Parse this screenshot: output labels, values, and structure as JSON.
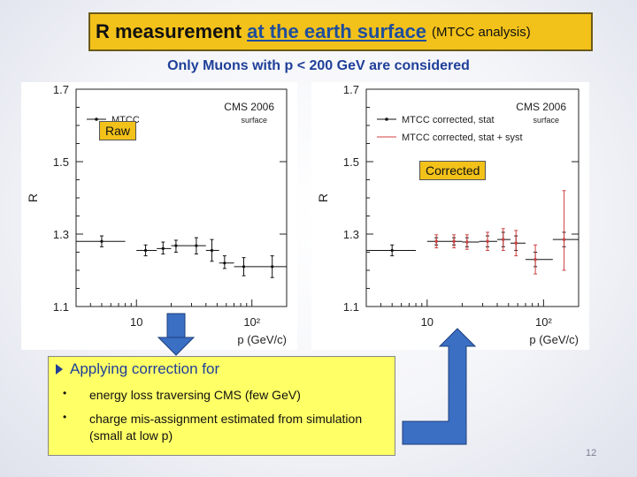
{
  "title": {
    "main": "R measurement",
    "highlight": "at the earth surface",
    "sub": "(MTCC analysis)"
  },
  "subtitle": "Only Muons with p < 200 GeV are considered",
  "chart_data": [
    {
      "type": "scatter",
      "panel": "left",
      "ylabel": "R",
      "xlabel": "p (GeV/c)",
      "xscale": "log",
      "xlim": [
        3,
        200
      ],
      "ylim": [
        1.1,
        1.7
      ],
      "yticks": [
        "1.1",
        "1.3",
        "1.5",
        "1.7"
      ],
      "xticks": [
        "10",
        "10²"
      ],
      "header_text": [
        "CMS 2006",
        "surface"
      ],
      "legend": [
        "MTCC"
      ],
      "series": [
        {
          "name": "MTCC",
          "color": "#111111",
          "points": [
            {
              "x": 5,
              "xlo": 3,
              "xhi": 8,
              "y": 1.28,
              "ylo": 1.265,
              "yhi": 1.295
            },
            {
              "x": 12,
              "xlo": 10,
              "xhi": 15,
              "y": 1.255,
              "ylo": 1.24,
              "yhi": 1.27
            },
            {
              "x": 17,
              "xlo": 15,
              "xhi": 20,
              "y": 1.26,
              "ylo": 1.245,
              "yhi": 1.278
            },
            {
              "x": 22,
              "xlo": 20,
              "xhi": 28,
              "y": 1.268,
              "ylo": 1.25,
              "yhi": 1.283
            },
            {
              "x": 33,
              "xlo": 28,
              "xhi": 40,
              "y": 1.268,
              "ylo": 1.245,
              "yhi": 1.29
            },
            {
              "x": 45,
              "xlo": 40,
              "xhi": 52,
              "y": 1.255,
              "ylo": 1.225,
              "yhi": 1.285
            },
            {
              "x": 58,
              "xlo": 52,
              "xhi": 70,
              "y": 1.22,
              "ylo": 1.205,
              "yhi": 1.24
            },
            {
              "x": 85,
              "xlo": 70,
              "xhi": 120,
              "y": 1.21,
              "ylo": 1.185,
              "yhi": 1.235
            },
            {
              "x": 150,
              "xlo": 120,
              "xhi": 200,
              "y": 1.21,
              "ylo": 1.18,
              "yhi": 1.24
            }
          ]
        }
      ]
    },
    {
      "type": "scatter",
      "panel": "right",
      "ylabel": "R",
      "xlabel": "p (GeV/c)",
      "xscale": "log",
      "xlim": [
        3,
        200
      ],
      "ylim": [
        1.1,
        1.7
      ],
      "yticks": [
        "1.1",
        "1.3",
        "1.5",
        "1.7"
      ],
      "xticks": [
        "10",
        "10²"
      ],
      "header_text": [
        "CMS 2006",
        "surface"
      ],
      "legend": [
        "MTCC corrected, stat",
        "MTCC corrected, stat + syst"
      ],
      "series": [
        {
          "name": "MTCC corrected, stat",
          "color": "#111111",
          "points": [
            {
              "x": 5,
              "xlo": 3,
              "xhi": 8,
              "y": 1.255,
              "ylo": 1.24,
              "yhi": 1.27
            },
            {
              "x": 12,
              "xlo": 10,
              "xhi": 15,
              "y": 1.28,
              "ylo": 1.27,
              "yhi": 1.29
            },
            {
              "x": 17,
              "xlo": 15,
              "xhi": 20,
              "y": 1.28,
              "ylo": 1.27,
              "yhi": 1.29
            },
            {
              "x": 22,
              "xlo": 20,
              "xhi": 28,
              "y": 1.278,
              "ylo": 1.265,
              "yhi": 1.29
            },
            {
              "x": 33,
              "xlo": 28,
              "xhi": 40,
              "y": 1.28,
              "ylo": 1.265,
              "yhi": 1.295
            },
            {
              "x": 45,
              "xlo": 40,
              "xhi": 52,
              "y": 1.285,
              "ylo": 1.265,
              "yhi": 1.305
            },
            {
              "x": 58,
              "xlo": 52,
              "xhi": 70,
              "y": 1.275,
              "ylo": 1.255,
              "yhi": 1.295
            },
            {
              "x": 85,
              "xlo": 70,
              "xhi": 120,
              "y": 1.23,
              "ylo": 1.21,
              "yhi": 1.25
            },
            {
              "x": 150,
              "xlo": 120,
              "xhi": 200,
              "y": 1.285,
              "ylo": 1.265,
              "yhi": 1.305
            }
          ]
        },
        {
          "name": "MTCC corrected, stat + syst",
          "color": "#d04040",
          "points": [
            {
              "x": 12,
              "y": 1.28,
              "ylo": 1.262,
              "yhi": 1.298
            },
            {
              "x": 17,
              "y": 1.28,
              "ylo": 1.262,
              "yhi": 1.298
            },
            {
              "x": 22,
              "y": 1.278,
              "ylo": 1.258,
              "yhi": 1.298
            },
            {
              "x": 33,
              "y": 1.28,
              "ylo": 1.255,
              "yhi": 1.305
            },
            {
              "x": 45,
              "y": 1.285,
              "ylo": 1.255,
              "yhi": 1.315
            },
            {
              "x": 58,
              "y": 1.275,
              "ylo": 1.24,
              "yhi": 1.31
            },
            {
              "x": 85,
              "y": 1.23,
              "ylo": 1.19,
              "yhi": 1.27
            },
            {
              "x": 150,
              "y": 1.285,
              "ylo": 1.2,
              "yhi": 1.42
            }
          ]
        }
      ]
    }
  ],
  "tags": {
    "raw": "Raw",
    "corrected": "Corrected"
  },
  "bottom": {
    "heading": "Applying correction for",
    "items": [
      "energy loss traversing CMS (few GeV)",
      "charge mis-assignment estimated from simulation (small at low p)"
    ]
  },
  "arrow_color": "#3a6fc4",
  "page_number": "12"
}
